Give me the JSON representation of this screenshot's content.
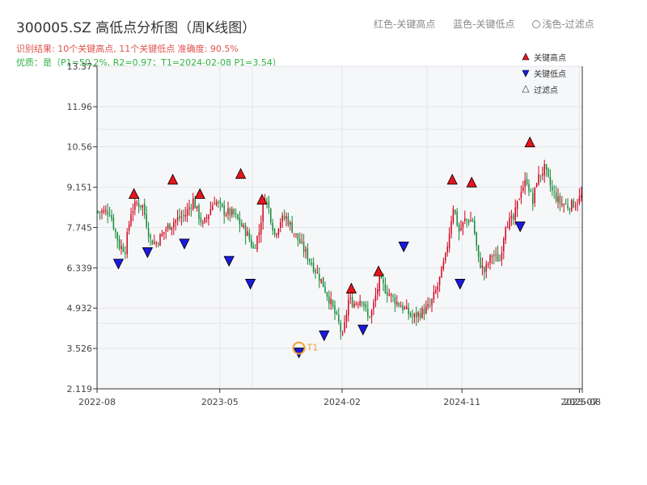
{
  "header": {
    "title": "300005.SZ 高低点分析图（周K线图）",
    "subtitle_result": "识别结果: 10个关键高点, 11个关键低点  准确度: 90.5%",
    "subtitle_quality": "优质：是（P1=50.2%, R2=0.97；T1=2024-02-08 P1=3.54）"
  },
  "top_legend": {
    "red": "红色-关键高点",
    "blue": "蓝色-关键低点",
    "light": "浅色-过滤点"
  },
  "colors": {
    "up": "#d0021b",
    "down": "#138a36",
    "high_marker": "#e8141b",
    "low_marker": "#1a1adf",
    "t1_marker": "#f0a030",
    "plot_bg": "#f6f7f9"
  },
  "chart_data": {
    "type": "candlestick",
    "title": "300005.SZ 高低点分析图（周K线图）",
    "ylim": [
      2.119,
      13.37
    ],
    "y_ticks": [
      "2.119",
      "3.526",
      "4.932",
      "6.339",
      "7.745",
      "9.151",
      "10.56",
      "11.96",
      "13.37"
    ],
    "x_ticks": [
      {
        "label": "2022-08",
        "t": 0
      },
      {
        "label": "2023-05",
        "t": 0.253
      },
      {
        "label": "2024-02",
        "t": 0.505
      },
      {
        "label": "2024-11",
        "t": 0.752
      },
      {
        "label": "2025-07",
        "t": 0.994
      },
      {
        "label": "2025-08",
        "t": 1.0
      }
    ],
    "legend": {
      "high": "关键高点",
      "low": "关键低点",
      "filtered": "过滤点",
      "position": "top-right"
    },
    "t1_label": "T1",
    "close_path": [
      [
        0,
        8.3
      ],
      [
        6,
        8.3
      ],
      [
        11,
        7.1
      ],
      [
        14,
        7.0
      ],
      [
        17,
        8.3
      ],
      [
        20,
        8.6
      ],
      [
        23,
        8.5
      ],
      [
        27,
        7.3
      ],
      [
        30,
        7.2
      ],
      [
        35,
        7.7
      ],
      [
        40,
        8.0
      ],
      [
        45,
        8.2
      ],
      [
        49,
        8.7
      ],
      [
        54,
        7.8
      ],
      [
        60,
        8.7
      ],
      [
        65,
        8.3
      ],
      [
        70,
        8.2
      ],
      [
        73,
        7.9
      ],
      [
        77,
        7.5
      ],
      [
        80,
        7.0
      ],
      [
        83,
        7.6
      ],
      [
        86,
        8.9
      ],
      [
        88,
        8.4
      ],
      [
        91,
        7.5
      ],
      [
        94,
        8.0
      ],
      [
        97,
        8.1
      ],
      [
        100,
        7.7
      ],
      [
        105,
        7.1
      ],
      [
        110,
        6.5
      ],
      [
        115,
        5.9
      ],
      [
        120,
        5.1
      ],
      [
        124,
        4.4
      ],
      [
        126,
        3.9
      ],
      [
        129,
        5.2
      ],
      [
        132,
        5.1
      ],
      [
        136,
        5.3
      ],
      [
        139,
        4.6
      ],
      [
        141,
        4.8
      ],
      [
        145,
        5.9
      ],
      [
        149,
        5.5
      ],
      [
        153,
        5.2
      ],
      [
        158,
        4.9
      ],
      [
        162,
        4.6
      ],
      [
        167,
        4.8
      ],
      [
        171,
        5.0
      ],
      [
        175,
        5.7
      ],
      [
        179,
        6.7
      ],
      [
        183,
        8.5
      ],
      [
        186,
        7.6
      ],
      [
        189,
        8.0
      ],
      [
        193,
        8.0
      ],
      [
        196,
        6.6
      ],
      [
        199,
        6.2
      ],
      [
        203,
        6.8
      ],
      [
        207,
        6.6
      ],
      [
        210,
        7.9
      ],
      [
        214,
        8.0
      ],
      [
        218,
        9.1
      ],
      [
        221,
        9.4
      ],
      [
        224,
        8.6
      ],
      [
        226,
        9.4
      ],
      [
        230,
        9.8
      ],
      [
        234,
        9.0
      ],
      [
        238,
        8.6
      ],
      [
        242,
        8.5
      ],
      [
        246,
        8.6
      ],
      [
        250,
        8.9
      ]
    ],
    "key_highs": [
      {
        "week": 19,
        "price": 8.9
      },
      {
        "week": 39,
        "price": 9.4
      },
      {
        "week": 53,
        "price": 8.9
      },
      {
        "week": 74,
        "price": 9.6
      },
      {
        "week": 85,
        "price": 8.7
      },
      {
        "week": 131,
        "price": 5.6
      },
      {
        "week": 145,
        "price": 6.2
      },
      {
        "week": 183,
        "price": 9.4
      },
      {
        "week": 193,
        "price": 9.3
      },
      {
        "week": 223,
        "price": 10.7
      }
    ],
    "key_lows": [
      {
        "week": 11,
        "price": 6.5
      },
      {
        "week": 26,
        "price": 6.9
      },
      {
        "week": 45,
        "price": 7.2
      },
      {
        "week": 68,
        "price": 6.6
      },
      {
        "week": 79,
        "price": 5.8
      },
      {
        "week": 104,
        "price": 3.4
      },
      {
        "week": 117,
        "price": 4.0
      },
      {
        "week": 137,
        "price": 4.2
      },
      {
        "week": 158,
        "price": 7.1
      },
      {
        "week": 187,
        "price": 5.8
      },
      {
        "week": 218,
        "price": 7.8
      }
    ],
    "t1": {
      "week": 104,
      "price": 3.54
    }
  }
}
